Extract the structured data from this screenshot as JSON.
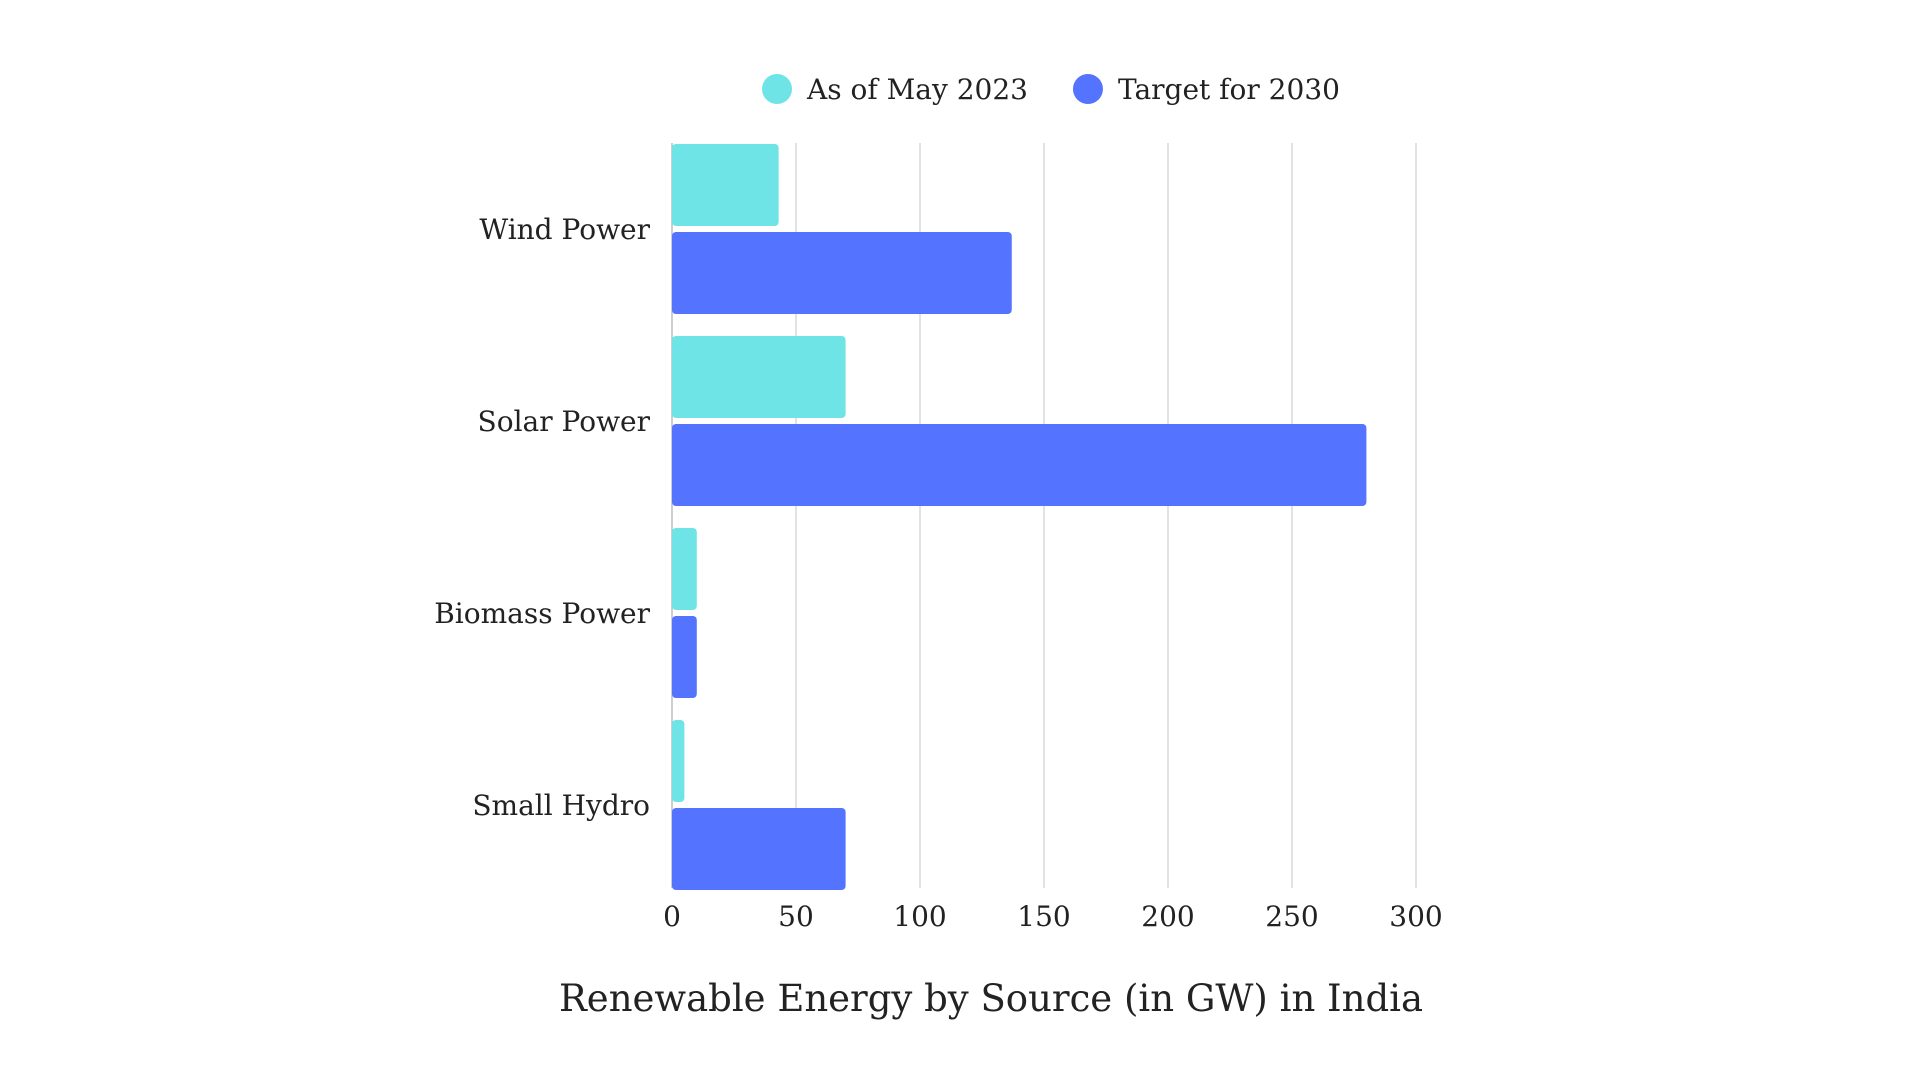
{
  "chart_data": {
    "type": "bar",
    "orientation": "horizontal",
    "categories": [
      "Wind Power",
      "Solar Power",
      "Biomass Power",
      "Small Hydro"
    ],
    "series": [
      {
        "name": "As of May 2023",
        "color": "#6ee4e6",
        "values": [
          43,
          70,
          10,
          5
        ]
      },
      {
        "name": "Target for 2030",
        "color": "#5473ff",
        "values": [
          137,
          280,
          10,
          70
        ]
      }
    ],
    "xlim": [
      0,
      300
    ],
    "xticks": [
      0,
      50,
      100,
      150,
      200,
      250,
      300
    ],
    "xlabel": "Renewable Energy by Source (in GW) in India",
    "grid": "vertical",
    "legend": "top"
  }
}
